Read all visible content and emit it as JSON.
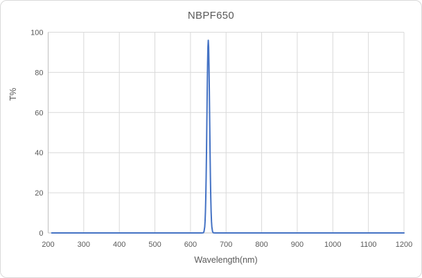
{
  "chart": {
    "title": "NBPF650",
    "background_color": "#ffffff",
    "frame_border_color": "#d9d9d9"
  },
  "chart_data": {
    "type": "line",
    "title": "NBPF650",
    "xlabel": "Wavelength(nm)",
    "ylabel": "T%",
    "xlim": [
      200,
      1200
    ],
    "ylim": [
      0,
      100
    ],
    "x_ticks": [
      200,
      300,
      400,
      500,
      600,
      700,
      800,
      900,
      1000,
      1100,
      1200
    ],
    "y_ticks": [
      0,
      20,
      40,
      60,
      80,
      100
    ],
    "grid": true,
    "legend_position": "none",
    "line_color": "#4472C4",
    "gridline_color": "#d9d9d9",
    "axis_color": "#bfbfbf",
    "label_color": "#595959",
    "peak": {
      "center_nm": 650,
      "max_transmission_pct": 96,
      "fwhm_nm": 9
    },
    "series": [
      {
        "name": "NBPF650",
        "points": [
          [
            210,
            0
          ],
          [
            300,
            0
          ],
          [
            400,
            0
          ],
          [
            500,
            0
          ],
          [
            600,
            0
          ],
          [
            630,
            0
          ],
          [
            634,
            0.05
          ],
          [
            636,
            0.1
          ],
          [
            638,
            0.7
          ],
          [
            640,
            3
          ],
          [
            641,
            5.8
          ],
          [
            642,
            10.5
          ],
          [
            643,
            17.6
          ],
          [
            644,
            27.6
          ],
          [
            645,
            40.4
          ],
          [
            646,
            55.2
          ],
          [
            647,
            70.3
          ],
          [
            648,
            83.6
          ],
          [
            649,
            92.7
          ],
          [
            650,
            96
          ],
          [
            651,
            92.7
          ],
          [
            652,
            83.6
          ],
          [
            653,
            70.3
          ],
          [
            654,
            55.2
          ],
          [
            655,
            40.4
          ],
          [
            656,
            27.6
          ],
          [
            657,
            17.6
          ],
          [
            658,
            10.5
          ],
          [
            659,
            5.8
          ],
          [
            660,
            3
          ],
          [
            662,
            0.7
          ],
          [
            664,
            0.1
          ],
          [
            666,
            0.05
          ],
          [
            670,
            0
          ],
          [
            700,
            0
          ],
          [
            800,
            0
          ],
          [
            900,
            0
          ],
          [
            1000,
            0
          ],
          [
            1100,
            0
          ],
          [
            1200,
            0
          ]
        ]
      }
    ]
  }
}
